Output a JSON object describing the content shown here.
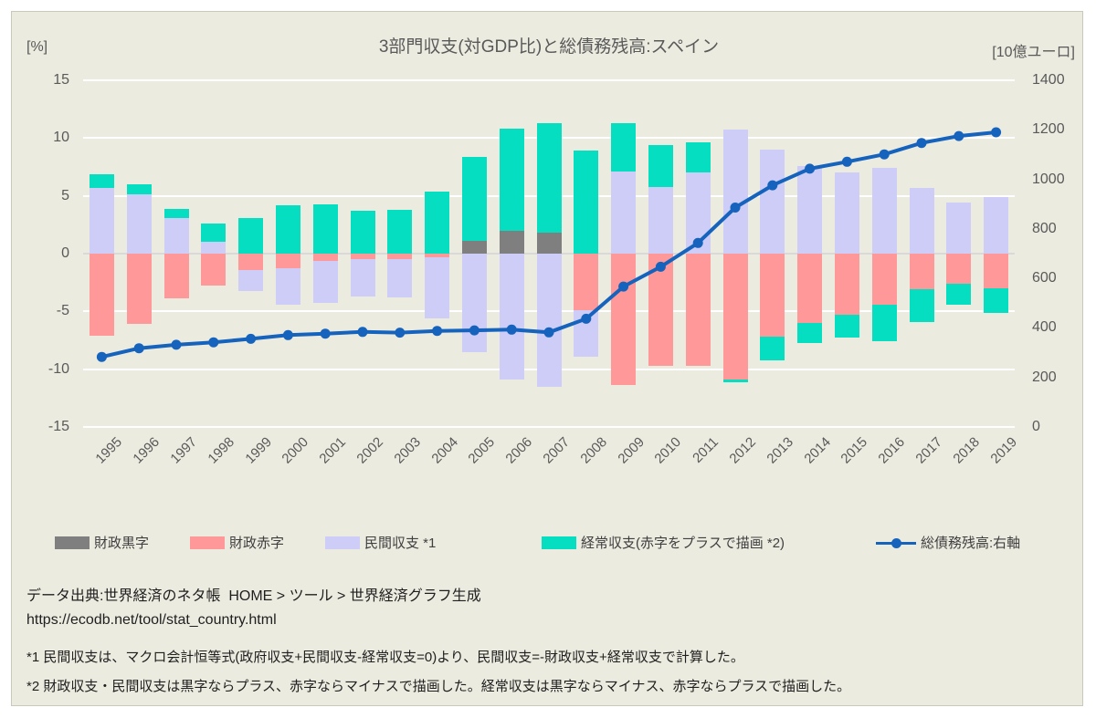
{
  "title": "3部門収支(対GDP比)と総債務残高:スペイン",
  "axis_left": {
    "unit": "[%]",
    "ticks": [
      15,
      10,
      5,
      0,
      -5,
      -10,
      -15
    ],
    "min": -15,
    "max": 15
  },
  "axis_right": {
    "unit": "[10億ユーロ]",
    "ticks": [
      1400,
      1200,
      1000,
      800,
      600,
      400,
      200,
      0
    ],
    "min": 0,
    "max": 1400
  },
  "colors": {
    "background": "#ecebe0",
    "grid": "#ffffff",
    "zero_line": "#d9d9d9",
    "surplus": "#7f7f7f",
    "deficit": "#ff9898",
    "private": "#cdcdf7",
    "current": "#06dec1",
    "debt_line": "#1563bd",
    "text": "#595959"
  },
  "legend": [
    {
      "label": "財政黒字",
      "color": "#7f7f7f",
      "type": "box"
    },
    {
      "label": "財政赤字",
      "color": "#ff9898",
      "type": "box"
    },
    {
      "label": "民間収支 *1",
      "color": "#cdcdf7",
      "type": "box"
    },
    {
      "label": "経常収支(赤字をプラスで描画 *2)",
      "color": "#06dec1",
      "type": "box"
    },
    {
      "label": "総債務残高:右軸",
      "color": "#1563bd",
      "type": "line"
    }
  ],
  "footer": {
    "source": "データ出典:世界経済のネタ帳  HOME > ツール > 世界経済グラフ生成",
    "url": "https://ecodb.net/tool/stat_country.html",
    "note1": "*1 民間収支は、マクロ会計恒等式(政府収支+民間収支-経常収支=0)より、民間収支=-財政収支+経常収支で計算した。",
    "note2": "*2 財政収支・民間収支は黒字ならプラス、赤字ならマイナスで描画した。経常収支は黒字ならマイナス、赤字ならプラスで描画した。"
  },
  "chart_data": {
    "type": "bar",
    "subtype": "stacked-bar-with-line",
    "title": "3部門収支(対GDP比)と総債務残高:スペイン",
    "xlabel": "",
    "ylabel_left": "[%]",
    "ylabel_right": "[10億ユーロ]",
    "ylim_left": [
      -15,
      15
    ],
    "ylim_right": [
      0,
      1400
    ],
    "grid": true,
    "legend_position": "bottom",
    "categories": [
      "1995",
      "1996",
      "1997",
      "1998",
      "1999",
      "2000",
      "2001",
      "2002",
      "2003",
      "2004",
      "2005",
      "2006",
      "2007",
      "2008",
      "2009",
      "2010",
      "2011",
      "2012",
      "2013",
      "2014",
      "2015",
      "2016",
      "2017",
      "2018",
      "2019"
    ],
    "series": [
      {
        "name": "財政黒字",
        "color": "#7f7f7f",
        "values": [
          0,
          0,
          0,
          0,
          0,
          0,
          0,
          0,
          0,
          0,
          1.1,
          2.0,
          1.8,
          0,
          0,
          0,
          0,
          0,
          0,
          0,
          0,
          0,
          0,
          0,
          0
        ]
      },
      {
        "name": "財政赤字",
        "color": "#ff9898",
        "values": [
          -7.1,
          -6.1,
          -3.9,
          -2.8,
          -1.4,
          -1.3,
          -0.6,
          -0.5,
          -0.5,
          -0.3,
          0,
          0,
          0,
          -4.9,
          -11.4,
          -9.7,
          -9.7,
          -10.9,
          -7.2,
          -6.0,
          -5.3,
          -4.4,
          -3.1,
          -2.6,
          -3.0
        ]
      },
      {
        "name": "民間収支 *1",
        "color": "#cdcdf7",
        "values": [
          5.7,
          5.1,
          3.1,
          1.0,
          -1.8,
          -3.1,
          -3.7,
          -3.2,
          -3.3,
          -5.3,
          -8.5,
          -10.9,
          -11.5,
          -4.0,
          7.1,
          5.8,
          7.0,
          10.7,
          9.0,
          7.6,
          7.0,
          7.4,
          5.7,
          4.4,
          4.9
        ]
      },
      {
        "name": "経常収支(赤字をプラスで描画 *2)",
        "color": "#06dec1",
        "values": [
          1.2,
          0.9,
          0.8,
          1.6,
          3.1,
          4.2,
          4.3,
          3.7,
          3.8,
          5.4,
          7.3,
          8.8,
          9.5,
          8.9,
          4.2,
          3.6,
          2.6,
          -0.2,
          -2.0,
          -1.7,
          -2.0,
          -3.2,
          -2.8,
          -1.8,
          -2.1
        ]
      }
    ],
    "line": {
      "name": "総債務残高:右軸",
      "color": "#1563bd",
      "axis": "right",
      "values": [
        283,
        318,
        332,
        342,
        356,
        371,
        377,
        384,
        381,
        388,
        390,
        393,
        382,
        437,
        567,
        647,
        743,
        886,
        976,
        1043,
        1071,
        1101,
        1147,
        1175,
        1190
      ]
    }
  }
}
